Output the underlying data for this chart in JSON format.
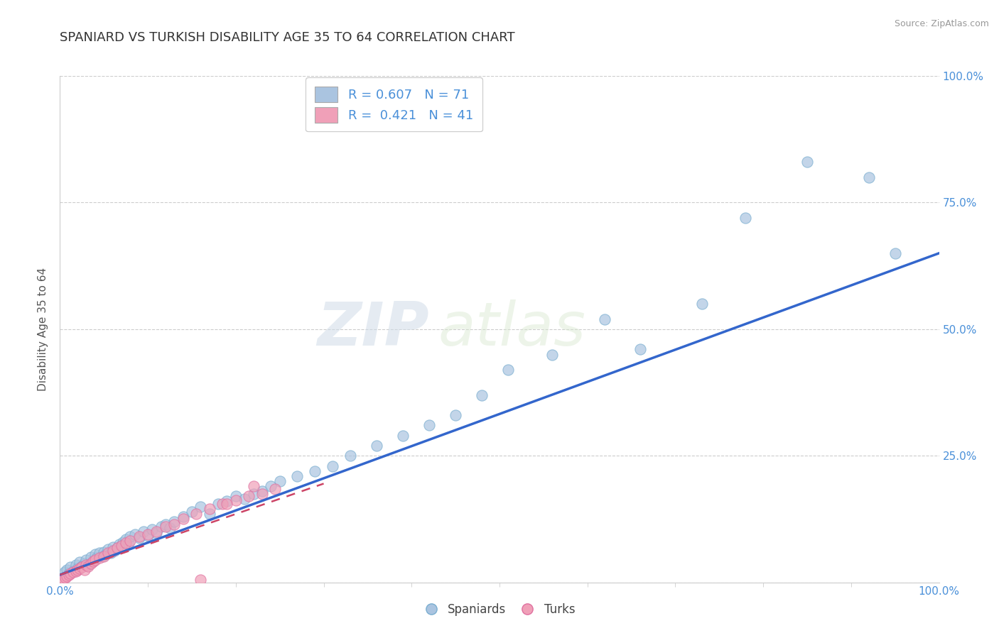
{
  "title": "SPANIARD VS TURKISH DISABILITY AGE 35 TO 64 CORRELATION CHART",
  "source_text": "Source: ZipAtlas.com",
  "ylabel": "Disability Age 35 to 64",
  "xlim": [
    0.0,
    1.0
  ],
  "ylim": [
    0.0,
    1.0
  ],
  "ytick_values": [
    0.0,
    0.25,
    0.5,
    0.75,
    1.0
  ],
  "ytick_labels": [
    "",
    "25.0%",
    "50.0%",
    "75.0%",
    "100.0%"
  ],
  "xtick_values": [
    0.0,
    1.0
  ],
  "xtick_labels": [
    "0.0%",
    "100.0%"
  ],
  "legend_r1": "R = 0.607",
  "legend_n1": "N = 71",
  "legend_r2": "R =  0.421",
  "legend_n2": "N = 41",
  "spaniards_color": "#aac4e0",
  "turks_color": "#f0a0b8",
  "trendline_blue": "#3366cc",
  "trendline_pink": "#cc4466",
  "watermark_zip": "ZIP",
  "watermark_atlas": "atlas",
  "background_color": "#ffffff",
  "grid_color": "#cccccc",
  "tick_color": "#4a90d9",
  "title_color": "#333333",
  "ylabel_color": "#555555",
  "source_color": "#999999",
  "spaniards_x": [
    0.005,
    0.008,
    0.01,
    0.012,
    0.015,
    0.018,
    0.02,
    0.022,
    0.025,
    0.028,
    0.03,
    0.032,
    0.035,
    0.038,
    0.04,
    0.042,
    0.045,
    0.048,
    0.05,
    0.052,
    0.055,
    0.058,
    0.06,
    0.062,
    0.065,
    0.068,
    0.07,
    0.072,
    0.075,
    0.078,
    0.08,
    0.085,
    0.09,
    0.095,
    0.1,
    0.105,
    0.11,
    0.115,
    0.12,
    0.125,
    0.13,
    0.14,
    0.15,
    0.16,
    0.17,
    0.18,
    0.19,
    0.2,
    0.21,
    0.22,
    0.23,
    0.24,
    0.25,
    0.27,
    0.29,
    0.31,
    0.33,
    0.36,
    0.39,
    0.42,
    0.45,
    0.48,
    0.51,
    0.56,
    0.62,
    0.66,
    0.73,
    0.78,
    0.85,
    0.92,
    0.95
  ],
  "spaniards_y": [
    0.02,
    0.025,
    0.018,
    0.03,
    0.022,
    0.035,
    0.028,
    0.04,
    0.032,
    0.038,
    0.045,
    0.035,
    0.05,
    0.042,
    0.055,
    0.048,
    0.058,
    0.052,
    0.06,
    0.055,
    0.065,
    0.058,
    0.07,
    0.062,
    0.068,
    0.075,
    0.072,
    0.08,
    0.085,
    0.078,
    0.09,
    0.095,
    0.088,
    0.1,
    0.092,
    0.105,
    0.098,
    0.11,
    0.115,
    0.108,
    0.12,
    0.13,
    0.14,
    0.15,
    0.135,
    0.155,
    0.16,
    0.17,
    0.165,
    0.175,
    0.18,
    0.19,
    0.2,
    0.21,
    0.22,
    0.23,
    0.25,
    0.27,
    0.29,
    0.31,
    0.33,
    0.37,
    0.42,
    0.45,
    0.52,
    0.46,
    0.55,
    0.72,
    0.83,
    0.8,
    0.65
  ],
  "turks_x": [
    0.002,
    0.004,
    0.006,
    0.008,
    0.01,
    0.012,
    0.015,
    0.018,
    0.02,
    0.022,
    0.025,
    0.028,
    0.03,
    0.032,
    0.035,
    0.038,
    0.04,
    0.045,
    0.05,
    0.055,
    0.06,
    0.065,
    0.07,
    0.075,
    0.08,
    0.09,
    0.1,
    0.11,
    0.12,
    0.13,
    0.14,
    0.155,
    0.17,
    0.185,
    0.2,
    0.215,
    0.23,
    0.245,
    0.22,
    0.19,
    0.16
  ],
  "turks_y": [
    0.005,
    0.008,
    0.01,
    0.012,
    0.015,
    0.018,
    0.02,
    0.022,
    0.025,
    0.028,
    0.03,
    0.025,
    0.035,
    0.032,
    0.038,
    0.042,
    0.045,
    0.048,
    0.052,
    0.058,
    0.062,
    0.068,
    0.072,
    0.078,
    0.082,
    0.09,
    0.095,
    0.1,
    0.11,
    0.115,
    0.125,
    0.135,
    0.145,
    0.155,
    0.162,
    0.17,
    0.175,
    0.185,
    0.19,
    0.155,
    0.005
  ]
}
